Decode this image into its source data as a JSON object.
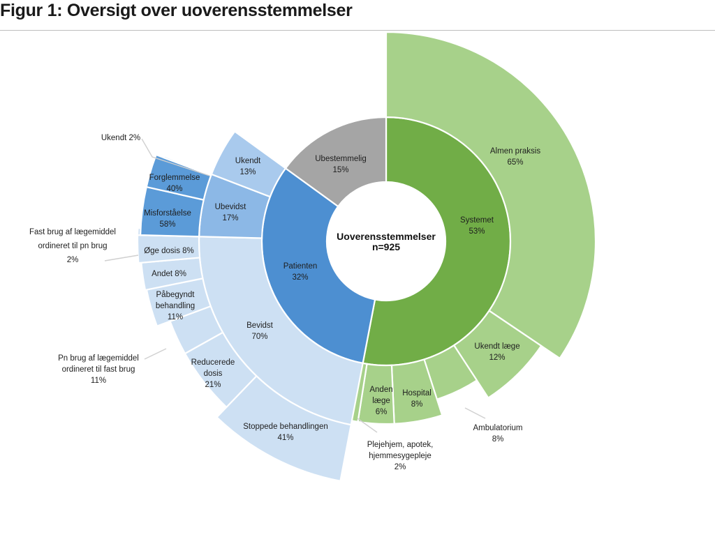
{
  "title": "Figur 1: Oversigt over uoverensstemmelser",
  "chart_data": {
    "type": "sunburst",
    "center": {
      "label": "Uoverensstemmelser",
      "sublabel": "n=925"
    },
    "colors": {
      "systemet": "#71ad47",
      "systemet_sub": "#a7d18a",
      "ubestemmelig": "#a5a5a5",
      "patienten": "#4d8fd1",
      "bevidst": "#cde0f3",
      "ubevidst": "#8cb8e6",
      "ubevidst_sub": "#5b9bd8",
      "ukendt": "#a9caed"
    },
    "inner_ring": [
      {
        "name": "Systemet",
        "pct": "53%"
      },
      {
        "name": "Patienten",
        "pct": "32%"
      },
      {
        "name": "Ubestemmelig",
        "pct": "15%"
      }
    ],
    "systemet_children": [
      {
        "name": "Almen praksis",
        "pct": "65%"
      },
      {
        "name": "Ukendt læge",
        "pct": "12%"
      },
      {
        "name": "Ambulatorium",
        "pct": "8%"
      },
      {
        "name": "Hospital",
        "pct": "8%"
      },
      {
        "name": "Anden læge",
        "pct": "6%"
      },
      {
        "name": "Plejehjem, apotek, hjemmesygepleje",
        "pct": "2%"
      }
    ],
    "patienten_children": [
      {
        "name": "Bevidst",
        "pct": "70%"
      },
      {
        "name": "Ubevidst",
        "pct": "17%"
      },
      {
        "name": "Ukendt",
        "pct": "13%"
      }
    ],
    "bevidst_children": [
      {
        "name": "Stoppede behandlingen",
        "pct": "41%"
      },
      {
        "name": "Reducerede dosis",
        "pct": "21%"
      },
      {
        "name": "Pn brug af lægemiddel ordineret til fast brug",
        "pct": "11%"
      },
      {
        "name": "Påbegyndt behandling",
        "pct": "11%"
      },
      {
        "name": "Andet",
        "pct": "8%"
      },
      {
        "name": "Øge dosis",
        "pct": "8%"
      },
      {
        "name": "Fast brug af lægemiddel ordineret til pn brug",
        "pct": "2%"
      }
    ],
    "ubevidst_children": [
      {
        "name": "Misforståelse",
        "pct": "58%"
      },
      {
        "name": "Forglemmelse",
        "pct": "40%"
      },
      {
        "name": "Ukendt",
        "pct": "2%"
      }
    ],
    "labels": {
      "almen": [
        "Almen praksis",
        "65%"
      ],
      "ukendt_laege": [
        "Ukendt læge",
        "12%"
      ],
      "ambulatorium": [
        "Ambulatorium",
        "8%"
      ],
      "hospital": [
        "Hospital",
        "8%"
      ],
      "anden_laege": [
        "Anden",
        "læge",
        "6%"
      ],
      "plejehjem": [
        "Plejehjem, apotek,",
        "hjemmesygepleje",
        "2%"
      ],
      "systemet": [
        "Systemet",
        "53%"
      ],
      "patienten": [
        "Patienten",
        "32%"
      ],
      "ubestemmelig": [
        "Ubestemmelig",
        "15%"
      ],
      "bevidst": [
        "Bevidst",
        "70%"
      ],
      "ubevidst": [
        "Ubevidst",
        "17%"
      ],
      "ukendt_pat": [
        "Ukendt",
        "13%"
      ],
      "stoppede": [
        "Stoppede behandlingen",
        "41%"
      ],
      "reducerede": [
        "Reducerede",
        "dosis",
        "21%"
      ],
      "pn_fast": [
        "Pn brug af lægemiddel",
        "ordineret til fast brug",
        "11%"
      ],
      "paabegyndt": [
        "Påbegyndt",
        "behandling",
        "11%"
      ],
      "andet": [
        "Andet 8%"
      ],
      "oege": [
        "Øge dosis 8%"
      ],
      "fast_pn": [
        "Fast brug af lægemiddel",
        "ordineret til pn brug",
        "2%"
      ],
      "misforstaaelse": [
        "Misforståelse",
        "58%"
      ],
      "forglemmelse": [
        "Forglemmelse",
        "40%"
      ],
      "ukendt2": [
        "Ukendt 2%"
      ]
    }
  }
}
